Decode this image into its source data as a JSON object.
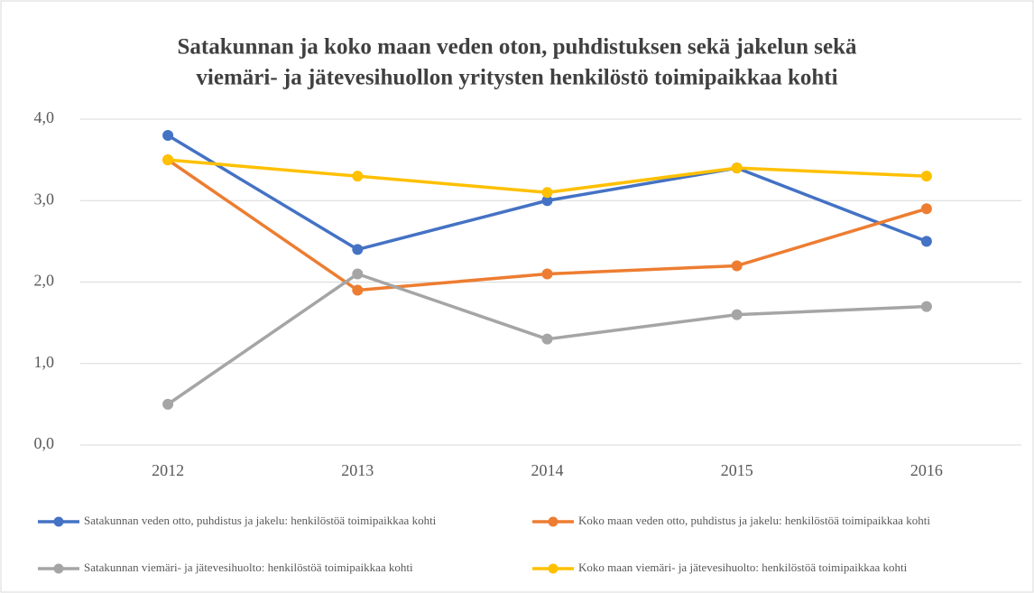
{
  "chart_data": {
    "type": "line",
    "title": [
      "Satakunnan ja koko maan veden oton, puhdistuksen sekä jakelun sekä",
      "viemäri- ja jätevesihuollon yritysten henkilöstö toimipaikkaa kohti"
    ],
    "categories": [
      "2012",
      "2013",
      "2014",
      "2015",
      "2016"
    ],
    "series": [
      {
        "name": "Satakunnan veden otto, puhdistus ja jakelu: henkilöstöä toimipaikkaa kohti",
        "color": "#4472c4",
        "values": [
          3.8,
          2.4,
          3.0,
          3.4,
          2.5
        ]
      },
      {
        "name": "Koko maan veden otto, puhdistus ja jakelu: henkilöstöä toimipaikkaa kohti",
        "color": "#ed7d31",
        "values": [
          3.5,
          1.9,
          2.1,
          2.2,
          2.9
        ]
      },
      {
        "name": "Satakunnan viemäri- ja jätevesihuolto: henkilöstöä toimipaikkaa kohti",
        "color": "#a5a5a5",
        "values": [
          0.5,
          2.1,
          1.3,
          1.6,
          1.7
        ]
      },
      {
        "name": "Koko maan viemäri- ja jätevesihuolto: henkilöstöä toimipaikkaa kohti",
        "color": "#ffc000",
        "values": [
          3.5,
          3.3,
          3.1,
          3.4,
          3.3
        ]
      }
    ],
    "ylim": [
      0,
      4
    ],
    "yticks": [
      {
        "value": 0,
        "label": "0,0"
      },
      {
        "value": 1,
        "label": "1,0"
      },
      {
        "value": 2,
        "label": "2,0"
      },
      {
        "value": 3,
        "label": "3,0"
      },
      {
        "value": 4,
        "label": "4,0"
      }
    ],
    "grid": true,
    "legend": "bottom"
  }
}
